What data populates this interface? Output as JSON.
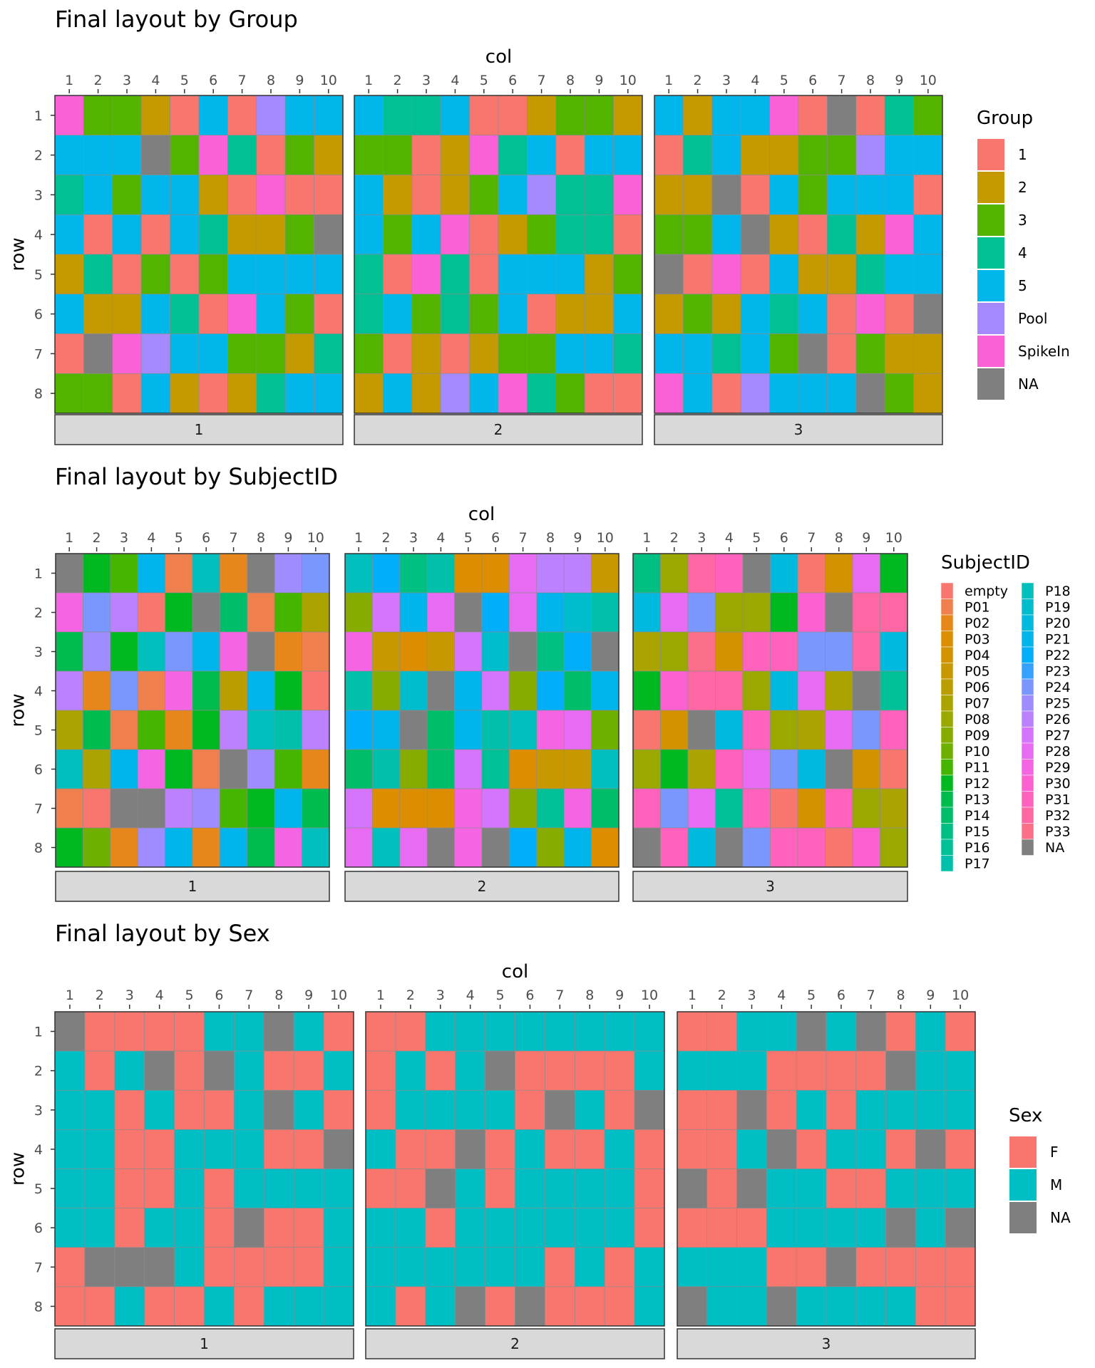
{
  "colors": {
    "group": {
      "1": "#F8766D",
      "2": "#C49A00",
      "3": "#53B400",
      "4": "#00C094",
      "5": "#00B6EB",
      "Pool": "#A58AFF",
      "SpikeIn": "#FB61D7",
      "NA": "#7F7F7F"
    },
    "sex": {
      "F": "#F8766D",
      "M": "#00BFC4",
      "NA": "#7F7F7F"
    },
    "subject": {
      "empty": "#F8766D",
      "P01": "#F07F4E",
      "P02": "#E7861B",
      "P03": "#DD8D00",
      "P04": "#D39200",
      "P05": "#C79800",
      "P06": "#BA9E00",
      "P07": "#ABA300",
      "P08": "#9AA800",
      "P09": "#86AC00",
      "P10": "#6DB000",
      "P11": "#45B500",
      "P12": "#00B81F",
      "P13": "#00BB4E",
      "P14": "#00BD6A",
      "P15": "#00BF82",
      "P16": "#00C097",
      "P17": "#00C0AB",
      "P18": "#00BFBD",
      "P19": "#00BDCE",
      "P20": "#00B9DE",
      "P21": "#00B4EC",
      "P22": "#00AEFA",
      "P23": "#35A2FF",
      "P24": "#7997FF",
      "P25": "#9F8CFF",
      "P26": "#BC81FF",
      "P27": "#D575FE",
      "P28": "#E76BF3",
      "P29": "#F564E3",
      "P30": "#FD61D1",
      "P31": "#FF62BC",
      "P32": "#FF67A4",
      "P33": "#FB6F8B",
      "NA": "#7F7F7F"
    }
  },
  "chart_data": [
    {
      "type": "heatmap",
      "title": "Final layout by Group",
      "xlabel": "col",
      "ylabel": "row",
      "x": [
        1,
        2,
        3,
        4,
        5,
        6,
        7,
        8,
        9,
        10
      ],
      "y": [
        1,
        2,
        3,
        4,
        5,
        6,
        7,
        8
      ],
      "facets": [
        "1",
        "2",
        "3"
      ],
      "legend_title": "Group",
      "legend_entries": [
        "1",
        "2",
        "3",
        "4",
        "5",
        "Pool",
        "SpikeIn",
        "NA"
      ],
      "color_key": "group",
      "plates": [
        [
          [
            "SpikeIn",
            "3",
            "3",
            "2",
            "1",
            "5",
            "1",
            "Pool",
            "5",
            "5"
          ],
          [
            "5",
            "5",
            "5",
            "NA",
            "3",
            "SpikeIn",
            "4",
            "1",
            "3",
            "2"
          ],
          [
            "4",
            "5",
            "3",
            "5",
            "5",
            "2",
            "1",
            "SpikeIn",
            "1",
            "1"
          ],
          [
            "5",
            "1",
            "5",
            "1",
            "5",
            "4",
            "2",
            "2",
            "3",
            "NA"
          ],
          [
            "2",
            "4",
            "1",
            "3",
            "1",
            "3",
            "5",
            "5",
            "5",
            "5"
          ],
          [
            "5",
            "2",
            "2",
            "5",
            "4",
            "1",
            "SpikeIn",
            "5",
            "3",
            "1"
          ],
          [
            "1",
            "NA",
            "SpikeIn",
            "Pool",
            "5",
            "5",
            "3",
            "3",
            "2",
            "4"
          ],
          [
            "3",
            "3",
            "1",
            "5",
            "2",
            "1",
            "2",
            "4",
            "5",
            "5"
          ]
        ],
        [
          [
            "5",
            "4",
            "4",
            "5",
            "1",
            "1",
            "2",
            "3",
            "3",
            "2"
          ],
          [
            "3",
            "3",
            "1",
            "2",
            "SpikeIn",
            "4",
            "5",
            "1",
            "5",
            "5"
          ],
          [
            "5",
            "2",
            "1",
            "2",
            "3",
            "5",
            "Pool",
            "4",
            "4",
            "SpikeIn"
          ],
          [
            "5",
            "3",
            "5",
            "SpikeIn",
            "1",
            "2",
            "3",
            "4",
            "4",
            "1"
          ],
          [
            "4",
            "1",
            "SpikeIn",
            "4",
            "1",
            "5",
            "5",
            "5",
            "2",
            "3"
          ],
          [
            "4",
            "5",
            "3",
            "4",
            "3",
            "5",
            "1",
            "2",
            "2",
            "5"
          ],
          [
            "3",
            "1",
            "2",
            "1",
            "2",
            "3",
            "3",
            "5",
            "5",
            "4"
          ],
          [
            "2",
            "5",
            "2",
            "Pool",
            "5",
            "SpikeIn",
            "4",
            "3",
            "1",
            "1"
          ]
        ],
        [
          [
            "5",
            "2",
            "5",
            "5",
            "SpikeIn",
            "1",
            "NA",
            "1",
            "4",
            "3"
          ],
          [
            "1",
            "4",
            "5",
            "2",
            "2",
            "3",
            "3",
            "Pool",
            "5",
            "5"
          ],
          [
            "2",
            "2",
            "NA",
            "1",
            "5",
            "3",
            "5",
            "5",
            "5",
            "1"
          ],
          [
            "3",
            "3",
            "5",
            "NA",
            "2",
            "1",
            "4",
            "2",
            "SpikeIn",
            "5"
          ],
          [
            "NA",
            "1",
            "SpikeIn",
            "1",
            "5",
            "2",
            "2",
            "4",
            "5",
            "5"
          ],
          [
            "2",
            "3",
            "2",
            "5",
            "4",
            "5",
            "1",
            "SpikeIn",
            "1",
            "NA"
          ],
          [
            "5",
            "5",
            "4",
            "5",
            "3",
            "NA",
            "1",
            "3",
            "2",
            "2"
          ],
          [
            "SpikeIn",
            "5",
            "1",
            "Pool",
            "5",
            "5",
            "5",
            "NA",
            "3",
            "2"
          ]
        ]
      ]
    },
    {
      "type": "heatmap",
      "title": "Final layout by SubjectID",
      "xlabel": "col",
      "ylabel": "row",
      "x": [
        1,
        2,
        3,
        4,
        5,
        6,
        7,
        8,
        9,
        10
      ],
      "y": [
        1,
        2,
        3,
        4,
        5,
        6,
        7,
        8
      ],
      "facets": [
        "1",
        "2",
        "3"
      ],
      "legend_title": "SubjectID",
      "legend_entries": [
        "empty",
        "P01",
        "P02",
        "P03",
        "P04",
        "P05",
        "P06",
        "P07",
        "P08",
        "P09",
        "P10",
        "P11",
        "P12",
        "P13",
        "P14",
        "P15",
        "P16",
        "P17",
        "P18",
        "P19",
        "P20",
        "P21",
        "P22",
        "P23",
        "P24",
        "P25",
        "P26",
        "P27",
        "P28",
        "P29",
        "P30",
        "P31",
        "P32",
        "P33",
        "NA"
      ],
      "color_key": "subject",
      "plates": [
        [
          [
            "NA",
            "P12",
            "P11",
            "P21",
            "P01",
            "P18",
            "P02",
            "NA",
            "P25",
            "P24"
          ],
          [
            "P29",
            "P24",
            "P26",
            "empty",
            "P12",
            "NA",
            "P14",
            "P01",
            "P11",
            "P07"
          ],
          [
            "P13",
            "P25",
            "P12",
            "P18",
            "P24",
            "P21",
            "P29",
            "NA",
            "P02",
            "P01"
          ],
          [
            "P26",
            "P02",
            "P24",
            "P01",
            "P29",
            "P13",
            "P06",
            "P21",
            "P12",
            "empty"
          ],
          [
            "P07",
            "P13",
            "P01",
            "P11",
            "P02",
            "P12",
            "P26",
            "P18",
            "P17",
            "P26"
          ],
          [
            "P18",
            "P07",
            "P21",
            "P29",
            "P12",
            "P01",
            "NA",
            "P25",
            "P11",
            "P02"
          ],
          [
            "P01",
            "empty",
            "NA",
            "NA",
            "P26",
            "P25",
            "P11",
            "P12",
            "P21",
            "P13"
          ],
          [
            "P12",
            "P10",
            "P02",
            "P25",
            "P21",
            "P02",
            "P21",
            "P13",
            "P29",
            "P18"
          ]
        ],
        [
          [
            "P18",
            "P22",
            "P15",
            "P17",
            "P03",
            "P03",
            "P28",
            "P26",
            "P26",
            "P05"
          ],
          [
            "P09",
            "P27",
            "P21",
            "P28",
            "NA",
            "P22",
            "P28",
            "P21",
            "P19",
            "P17"
          ],
          [
            "P29",
            "P05",
            "P03",
            "P05",
            "P27",
            "P19",
            "NA",
            "P15",
            "P22",
            "NA"
          ],
          [
            "P17",
            "P09",
            "P19",
            "NA",
            "P21",
            "P27",
            "P09",
            "P22",
            "P14",
            "P21"
          ],
          [
            "P22",
            "P21",
            "NA",
            "P14",
            "P21",
            "P17",
            "P18",
            "P29",
            "P28",
            "P10"
          ],
          [
            "P14",
            "P17",
            "P09",
            "P14",
            "P27",
            "P16",
            "P03",
            "P05",
            "P05",
            "P18"
          ],
          [
            "P27",
            "P03",
            "P03",
            "P03",
            "P29",
            "P27",
            "P09",
            "P16",
            "P29",
            "P14"
          ],
          [
            "P28",
            "P18",
            "P28",
            "NA",
            "P29",
            "NA",
            "P22",
            "P09",
            "P21",
            "P03"
          ]
        ],
        [
          [
            "P15",
            "P08",
            "P32",
            "P31",
            "NA",
            "P20",
            "empty",
            "P04",
            "P28",
            "P12"
          ],
          [
            "P20",
            "P28",
            "P24",
            "P08",
            "P08",
            "P12",
            "P30",
            "NA",
            "P32",
            "P32"
          ],
          [
            "P07",
            "P08",
            "P33",
            "P04",
            "P31",
            "P31",
            "P24",
            "P24",
            "P32",
            "P20"
          ],
          [
            "P12",
            "P30",
            "P32",
            "P32",
            "P08",
            "P20",
            "P28",
            "P07",
            "NA",
            "P16"
          ],
          [
            "empty",
            "P04",
            "NA",
            "P20",
            "P31",
            "P08",
            "P07",
            "P28",
            "P24",
            "P31"
          ],
          [
            "P08",
            "P12",
            "P07",
            "P31",
            "P28",
            "P24",
            "P20",
            "NA",
            "P04",
            "empty"
          ],
          [
            "P31",
            "P24",
            "P28",
            "P16",
            "P31",
            "empty",
            "P04",
            "P31",
            "P08",
            "P07"
          ],
          [
            "NA",
            "P31",
            "P20",
            "NA",
            "P24",
            "P31",
            "P31",
            "empty",
            "P30",
            "P08"
          ]
        ]
      ]
    },
    {
      "type": "heatmap",
      "title": "Final layout by Sex",
      "xlabel": "col",
      "ylabel": "row",
      "x": [
        1,
        2,
        3,
        4,
        5,
        6,
        7,
        8,
        9,
        10
      ],
      "y": [
        1,
        2,
        3,
        4,
        5,
        6,
        7,
        8
      ],
      "facets": [
        "1",
        "2",
        "3"
      ],
      "legend_title": "Sex",
      "legend_entries": [
        "F",
        "M",
        "NA"
      ],
      "color_key": "sex",
      "plates": [
        [
          [
            "NA",
            "F",
            "F",
            "F",
            "F",
            "M",
            "M",
            "NA",
            "M",
            "F"
          ],
          [
            "M",
            "F",
            "M",
            "NA",
            "F",
            "NA",
            "M",
            "F",
            "F",
            "M"
          ],
          [
            "M",
            "M",
            "F",
            "M",
            "F",
            "F",
            "M",
            "NA",
            "M",
            "F"
          ],
          [
            "M",
            "M",
            "F",
            "F",
            "M",
            "M",
            "M",
            "F",
            "F",
            "NA"
          ],
          [
            "M",
            "M",
            "F",
            "F",
            "M",
            "F",
            "M",
            "M",
            "M",
            "M"
          ],
          [
            "M",
            "M",
            "F",
            "M",
            "M",
            "F",
            "NA",
            "F",
            "F",
            "M"
          ],
          [
            "F",
            "NA",
            "NA",
            "NA",
            "M",
            "F",
            "F",
            "F",
            "F",
            "M"
          ],
          [
            "F",
            "F",
            "M",
            "F",
            "F",
            "M",
            "F",
            "M",
            "M",
            "M"
          ]
        ],
        [
          [
            "F",
            "F",
            "M",
            "M",
            "M",
            "M",
            "M",
            "M",
            "M",
            "M"
          ],
          [
            "F",
            "M",
            "F",
            "M",
            "NA",
            "F",
            "F",
            "F",
            "F",
            "M"
          ],
          [
            "F",
            "M",
            "M",
            "M",
            "M",
            "F",
            "NA",
            "M",
            "F",
            "NA"
          ],
          [
            "M",
            "F",
            "F",
            "NA",
            "F",
            "M",
            "F",
            "F",
            "M",
            "F"
          ],
          [
            "F",
            "F",
            "NA",
            "M",
            "F",
            "M",
            "M",
            "M",
            "M",
            "F"
          ],
          [
            "M",
            "M",
            "F",
            "M",
            "M",
            "M",
            "M",
            "M",
            "M",
            "F"
          ],
          [
            "M",
            "M",
            "M",
            "M",
            "M",
            "M",
            "F",
            "M",
            "F",
            "M"
          ],
          [
            "M",
            "F",
            "M",
            "NA",
            "F",
            "NA",
            "F",
            "F",
            "F",
            "M"
          ]
        ],
        [
          [
            "F",
            "F",
            "M",
            "M",
            "NA",
            "M",
            "NA",
            "F",
            "M",
            "F"
          ],
          [
            "M",
            "M",
            "M",
            "F",
            "F",
            "F",
            "F",
            "NA",
            "M",
            "M"
          ],
          [
            "F",
            "F",
            "NA",
            "F",
            "M",
            "F",
            "M",
            "M",
            "M",
            "M"
          ],
          [
            "F",
            "F",
            "M",
            "NA",
            "F",
            "M",
            "M",
            "F",
            "NA",
            "F"
          ],
          [
            "NA",
            "F",
            "NA",
            "M",
            "M",
            "F",
            "F",
            "M",
            "M",
            "M"
          ],
          [
            "F",
            "F",
            "F",
            "M",
            "M",
            "M",
            "M",
            "NA",
            "M",
            "NA"
          ],
          [
            "M",
            "M",
            "M",
            "F",
            "F",
            "NA",
            "F",
            "F",
            "F",
            "F"
          ],
          [
            "NA",
            "M",
            "M",
            "NA",
            "M",
            "M",
            "M",
            "M",
            "F",
            "F"
          ]
        ]
      ]
    }
  ]
}
